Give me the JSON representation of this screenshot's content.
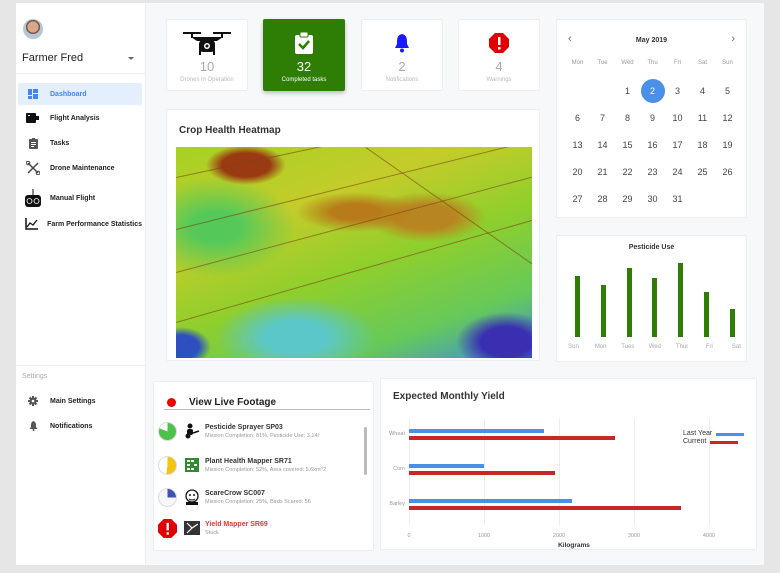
{
  "user": {
    "name": "Farmer Fred"
  },
  "sidebar": {
    "items": [
      {
        "label": "Dashboard",
        "icon": "dashboard-icon",
        "active": true
      },
      {
        "label": "Flight Analysis",
        "icon": "camera-icon"
      },
      {
        "label": "Tasks",
        "icon": "clipboard-icon"
      },
      {
        "label": "Drone Maintenance",
        "icon": "tools-icon"
      },
      {
        "label": "Manual Flight",
        "icon": "remote-controller-icon"
      },
      {
        "label": "Farm Performance Statistics",
        "icon": "line-chart-icon"
      }
    ],
    "settings_title": "Settings",
    "settings_items": [
      {
        "label": "Main Settings",
        "icon": "gear-icon"
      },
      {
        "label": "Notifications",
        "icon": "bell-icon"
      }
    ]
  },
  "stats": [
    {
      "value": "10",
      "label": "Drones in Operation",
      "icon": "drone-icon"
    },
    {
      "value": "32",
      "label": "Completed tasks",
      "icon": "clipboard-check-icon",
      "highlight": true
    },
    {
      "value": "2",
      "label": "Notifications",
      "icon": "bell-icon",
      "color": "#1a1aff"
    },
    {
      "value": "4",
      "label": "Warnings",
      "icon": "warning-octagon-icon",
      "color": "#e00000"
    }
  ],
  "calendar": {
    "month_label": "May 2019",
    "prev": "‹",
    "next": "›",
    "weekdays": [
      "Mon",
      "Tue",
      "Wed",
      "Thu",
      "Fri",
      "Sat",
      "Sun"
    ],
    "leading_blanks": 2,
    "days": [
      "1",
      "2",
      "3",
      "4",
      "5",
      "6",
      "7",
      "8",
      "9",
      "10",
      "11",
      "12",
      "13",
      "14",
      "15",
      "16",
      "17",
      "18",
      "19",
      "20",
      "21",
      "22",
      "23",
      "24",
      "25",
      "26",
      "27",
      "28",
      "29",
      "30",
      "31"
    ],
    "selected": "2"
  },
  "heatmap": {
    "title": "Crop Health Heatmap"
  },
  "live_footage": {
    "title": "View Live Footage",
    "drones": [
      {
        "name": "Pesticide Sprayer SP03",
        "status": "Mission Completion: 81%,  Pesticide Use: 3.14l",
        "completion": 81,
        "color": "#4cc24c"
      },
      {
        "name": "Plant Health Mapper SR71",
        "status": "Mission Completion: 52%, Area covered: 5.6km^2",
        "completion": 52,
        "color": "#f2c40f"
      },
      {
        "name": "ScareCrow SC007",
        "status": "Mission Completion: 25%, Birds Scared: 56",
        "completion": 25,
        "color": "#3f51b5"
      },
      {
        "name": "Yield Mapper SR69",
        "status": "Stuck",
        "error": true
      }
    ]
  },
  "chart_data": [
    {
      "type": "bar",
      "title": "Pesticide Use",
      "categories": [
        "Sun",
        "Mon",
        "Tues",
        "Wed",
        "Thur",
        "Fri",
        "Sat"
      ],
      "values": [
        70,
        60,
        80,
        68,
        85,
        52,
        32
      ],
      "xlabel": "",
      "ylabel": "",
      "grid": false,
      "color": "#2e7d05"
    },
    {
      "type": "bar",
      "orientation": "horizontal",
      "title": "Expected Monthly Yield",
      "categories": [
        "Wheat",
        "Corn",
        "Barley"
      ],
      "series": [
        {
          "name": "Last Year",
          "values": [
            1800,
            1000,
            2170
          ],
          "color": "#4a90e8"
        },
        {
          "name": "Current",
          "values": [
            2740,
            1940,
            3630
          ],
          "color": "#c62828"
        }
      ],
      "xlabel": "Kilograms",
      "xticks": [
        "0",
        "1000",
        "2000",
        "3000",
        "4000"
      ],
      "xlim": [
        0,
        4400
      ],
      "legend_position": "right",
      "grid": true
    }
  ]
}
